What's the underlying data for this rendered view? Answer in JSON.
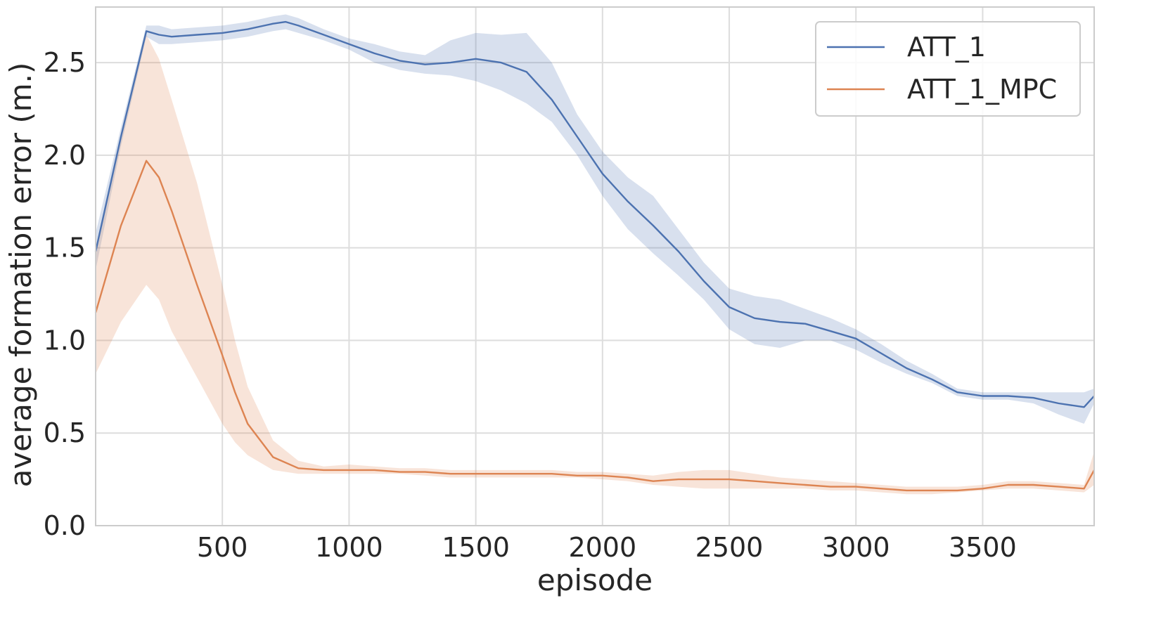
{
  "chart_data": {
    "type": "line",
    "title": "",
    "xlabel": "episode",
    "ylabel": "average formation error (m.)",
    "xlim": [
      0,
      3940
    ],
    "ylim": [
      0,
      2.8
    ],
    "xticks": [
      500,
      1000,
      1500,
      2000,
      2500,
      3000,
      3500
    ],
    "yticks": [
      0.0,
      0.5,
      1.0,
      1.5,
      2.0,
      2.5
    ],
    "xtick_labels": [
      "500",
      "1000",
      "1500",
      "2000",
      "2500",
      "3000",
      "3500"
    ],
    "ytick_labels": [
      "0.0",
      "0.5",
      "1.0",
      "1.5",
      "2.0",
      "2.5"
    ],
    "grid": true,
    "legend_position": "top-right",
    "series": [
      {
        "name": "ATT_1",
        "color": "#4c72b0",
        "band_color": "#4c72b0",
        "x": [
          0,
          100,
          200,
          250,
          300,
          400,
          500,
          600,
          700,
          750,
          800,
          900,
          1000,
          1100,
          1200,
          1300,
          1400,
          1500,
          1600,
          1700,
          1800,
          1900,
          2000,
          2100,
          2200,
          2300,
          2400,
          2500,
          2600,
          2700,
          2800,
          2900,
          3000,
          3100,
          3200,
          3300,
          3400,
          3500,
          3600,
          3700,
          3800,
          3900,
          3940
        ],
        "y": [
          1.48,
          2.1,
          2.67,
          2.65,
          2.64,
          2.65,
          2.66,
          2.68,
          2.71,
          2.72,
          2.7,
          2.65,
          2.6,
          2.55,
          2.51,
          2.49,
          2.5,
          2.52,
          2.5,
          2.45,
          2.3,
          2.1,
          1.9,
          1.75,
          1.62,
          1.48,
          1.32,
          1.18,
          1.12,
          1.1,
          1.09,
          1.05,
          1.01,
          0.93,
          0.85,
          0.79,
          0.72,
          0.7,
          0.7,
          0.69,
          0.66,
          0.64,
          0.7
        ],
        "lower": [
          1.38,
          2.05,
          2.64,
          2.6,
          2.6,
          2.61,
          2.62,
          2.64,
          2.67,
          2.68,
          2.66,
          2.62,
          2.57,
          2.5,
          2.46,
          2.44,
          2.43,
          2.4,
          2.35,
          2.28,
          2.18,
          2.0,
          1.78,
          1.6,
          1.47,
          1.35,
          1.22,
          1.06,
          0.98,
          0.96,
          1.0,
          1.0,
          0.95,
          0.88,
          0.82,
          0.77,
          0.7,
          0.68,
          0.68,
          0.66,
          0.6,
          0.55,
          0.66
        ],
        "upper": [
          1.58,
          2.15,
          2.7,
          2.7,
          2.68,
          2.69,
          2.7,
          2.72,
          2.75,
          2.76,
          2.74,
          2.68,
          2.63,
          2.6,
          2.56,
          2.54,
          2.62,
          2.66,
          2.65,
          2.66,
          2.5,
          2.22,
          2.02,
          1.88,
          1.78,
          1.6,
          1.42,
          1.28,
          1.24,
          1.22,
          1.17,
          1.12,
          1.06,
          0.98,
          0.89,
          0.82,
          0.74,
          0.72,
          0.72,
          0.72,
          0.72,
          0.72,
          0.74
        ]
      },
      {
        "name": "ATT_1_MPC",
        "color": "#dd8452",
        "band_color": "#dd8452",
        "x": [
          0,
          100,
          200,
          250,
          300,
          400,
          500,
          550,
          600,
          700,
          800,
          900,
          1000,
          1100,
          1200,
          1300,
          1400,
          1500,
          1600,
          1700,
          1800,
          1900,
          2000,
          2100,
          2200,
          2300,
          2400,
          2500,
          2600,
          2700,
          2800,
          2900,
          3000,
          3100,
          3200,
          3300,
          3400,
          3500,
          3600,
          3700,
          3800,
          3900,
          3940
        ],
        "y": [
          1.15,
          1.62,
          1.97,
          1.88,
          1.7,
          1.3,
          0.92,
          0.72,
          0.55,
          0.37,
          0.31,
          0.3,
          0.3,
          0.3,
          0.29,
          0.29,
          0.28,
          0.28,
          0.28,
          0.28,
          0.28,
          0.27,
          0.27,
          0.26,
          0.24,
          0.25,
          0.25,
          0.25,
          0.24,
          0.23,
          0.22,
          0.21,
          0.21,
          0.2,
          0.19,
          0.19,
          0.19,
          0.2,
          0.22,
          0.22,
          0.21,
          0.2,
          0.3
        ],
        "lower": [
          0.82,
          1.1,
          1.3,
          1.22,
          1.05,
          0.8,
          0.55,
          0.45,
          0.38,
          0.3,
          0.28,
          0.28,
          0.28,
          0.28,
          0.28,
          0.27,
          0.26,
          0.26,
          0.26,
          0.26,
          0.26,
          0.26,
          0.25,
          0.24,
          0.22,
          0.21,
          0.2,
          0.2,
          0.2,
          0.2,
          0.2,
          0.19,
          0.19,
          0.18,
          0.17,
          0.17,
          0.18,
          0.19,
          0.2,
          0.2,
          0.19,
          0.18,
          0.22
        ],
        "upper": [
          1.5,
          2.1,
          2.65,
          2.52,
          2.3,
          1.85,
          1.3,
          1.0,
          0.75,
          0.46,
          0.35,
          0.32,
          0.33,
          0.32,
          0.31,
          0.31,
          0.3,
          0.3,
          0.3,
          0.3,
          0.3,
          0.29,
          0.29,
          0.28,
          0.27,
          0.29,
          0.3,
          0.3,
          0.28,
          0.26,
          0.25,
          0.24,
          0.23,
          0.22,
          0.21,
          0.21,
          0.21,
          0.22,
          0.24,
          0.24,
          0.23,
          0.22,
          0.4
        ]
      }
    ]
  }
}
